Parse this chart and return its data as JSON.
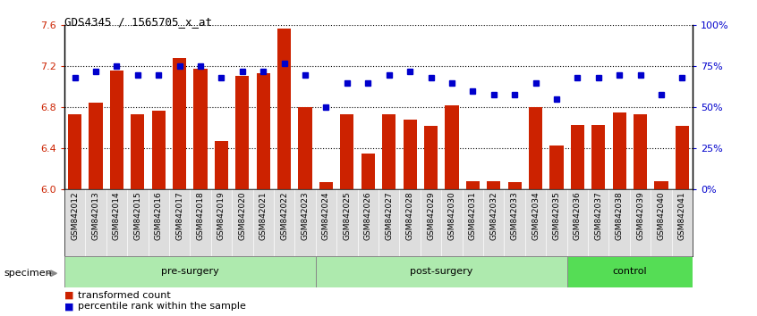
{
  "title": "GDS4345 / 1565705_x_at",
  "samples": [
    "GSM842012",
    "GSM842013",
    "GSM842014",
    "GSM842015",
    "GSM842016",
    "GSM842017",
    "GSM842018",
    "GSM842019",
    "GSM842020",
    "GSM842021",
    "GSM842022",
    "GSM842023",
    "GSM842024",
    "GSM842025",
    "GSM842026",
    "GSM842027",
    "GSM842028",
    "GSM842029",
    "GSM842030",
    "GSM842031",
    "GSM842032",
    "GSM842033",
    "GSM842034",
    "GSM842035",
    "GSM842036",
    "GSM842037",
    "GSM842038",
    "GSM842039",
    "GSM842040",
    "GSM842041"
  ],
  "bar_values": [
    6.73,
    6.85,
    7.16,
    6.73,
    6.77,
    7.28,
    7.18,
    6.47,
    7.11,
    7.13,
    7.57,
    6.8,
    6.07,
    6.73,
    6.35,
    6.73,
    6.68,
    6.62,
    6.82,
    6.08,
    6.08,
    6.07,
    6.8,
    6.43,
    6.63,
    6.63,
    6.75,
    6.73,
    6.08,
    6.62
  ],
  "percentile_values": [
    68,
    72,
    75,
    70,
    70,
    75,
    75,
    68,
    72,
    72,
    77,
    70,
    50,
    65,
    65,
    70,
    72,
    68,
    65,
    60,
    58,
    58,
    65,
    55,
    68,
    68,
    70,
    70,
    58,
    68
  ],
  "groups": [
    {
      "label": "pre-surgery",
      "start": 0,
      "end": 12,
      "color": "#aeeaae"
    },
    {
      "label": "post-surgery",
      "start": 12,
      "end": 24,
      "color": "#aeeaae"
    },
    {
      "label": "control",
      "start": 24,
      "end": 30,
      "color": "#55dd55"
    }
  ],
  "ylim_left": [
    6.0,
    7.6
  ],
  "ylim_right": [
    0,
    100
  ],
  "yticks_left": [
    6.0,
    6.4,
    6.8,
    7.2,
    7.6
  ],
  "yticks_right": [
    0,
    25,
    50,
    75,
    100
  ],
  "ytick_labels_right": [
    "0%",
    "25%",
    "50%",
    "75%",
    "100%"
  ],
  "bar_color": "#CC2200",
  "dot_color": "#0000CC",
  "bar_baseline": 6.0,
  "specimen_label": "specimen",
  "legend_items": [
    {
      "label": "transformed count",
      "color": "#CC2200"
    },
    {
      "label": "percentile rank within the sample",
      "color": "#0000CC"
    }
  ]
}
